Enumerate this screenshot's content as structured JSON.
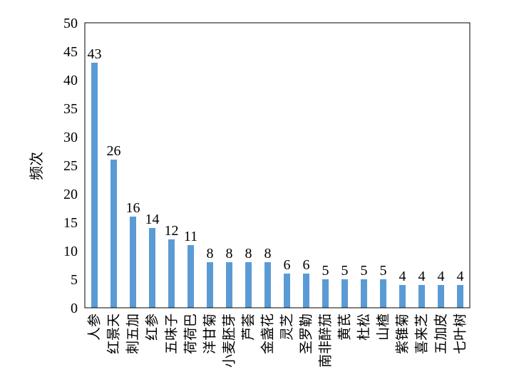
{
  "chart_data": {
    "type": "bar",
    "title": "",
    "xlabel": "",
    "ylabel": "频次",
    "ylim": [
      0,
      50
    ],
    "yticks": [
      "0",
      "5",
      "10",
      "15",
      "20",
      "25",
      "30",
      "35",
      "40",
      "45",
      "50"
    ],
    "categories": [
      "人参",
      "红景天",
      "刺五加",
      "红参",
      "五味子",
      "荷荷巴",
      "洋甘菊",
      "小麦胚芽",
      "芦荟",
      "金盏花",
      "灵芝",
      "圣罗勒",
      "南非醉茄",
      "黄芪",
      "杜松",
      "山楂",
      "紫锥菊",
      "喜来芝",
      "五加皮",
      "七叶树"
    ],
    "values": [
      43,
      26,
      16,
      14,
      12,
      11,
      8,
      8,
      8,
      8,
      6,
      6,
      5,
      5,
      5,
      5,
      4,
      4,
      4,
      4
    ],
    "data_labels": true,
    "bar_color": "#5b9bd5",
    "grid": false,
    "legend": "none"
  }
}
